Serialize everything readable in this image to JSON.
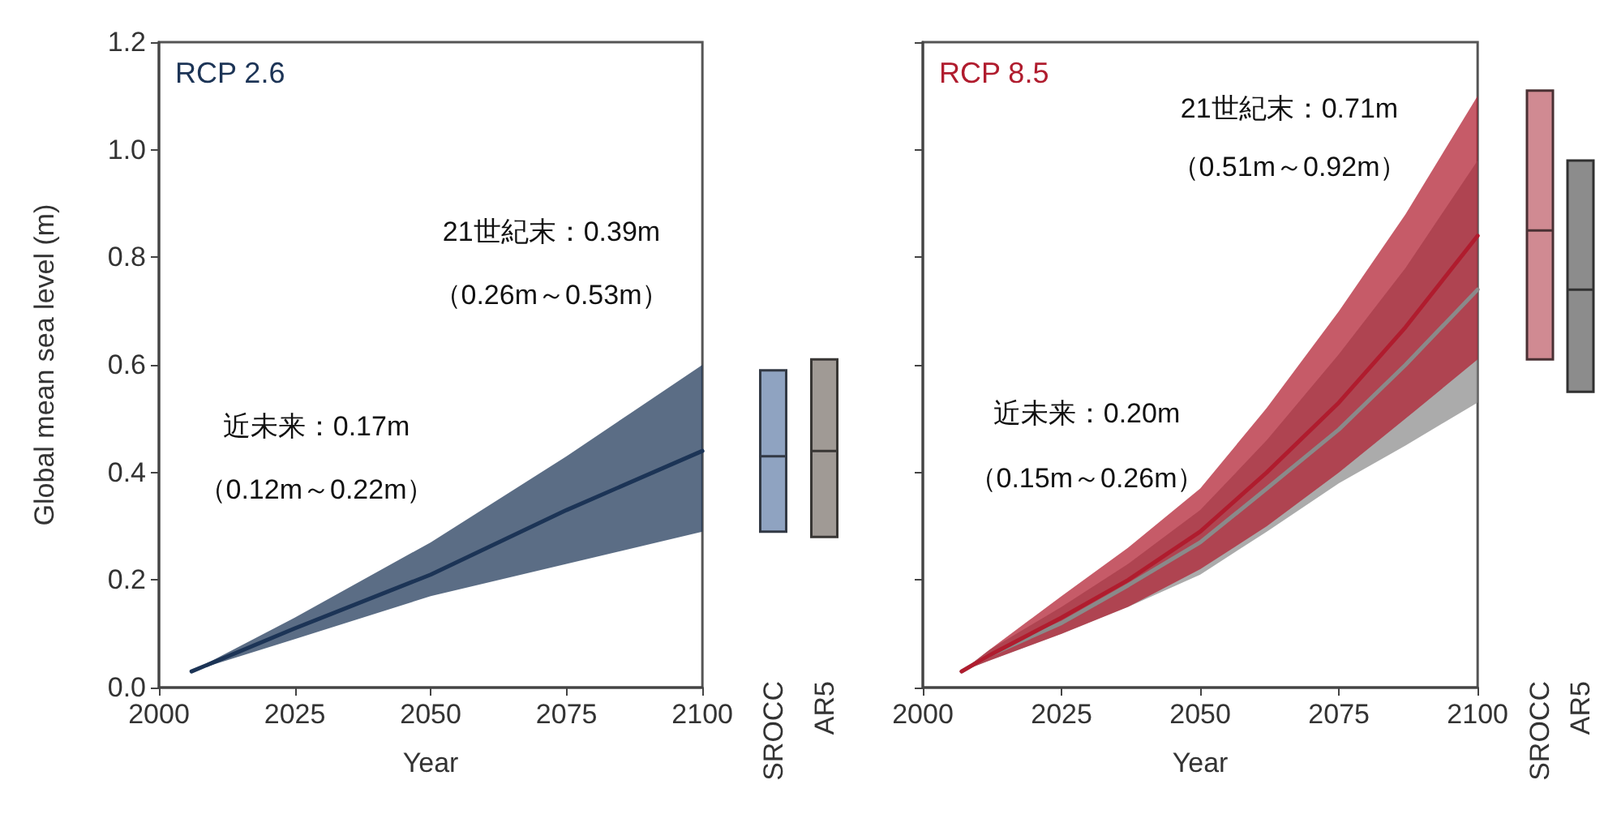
{
  "chart_data": [
    {
      "type": "line",
      "title": "RCP 2.6",
      "xlabel": "Year",
      "ylabel": "Global mean sea level (m)",
      "x": [
        2006,
        2025,
        2050,
        2075,
        2100
      ],
      "series": [
        {
          "color": "#1c3456",
          "values": [
            0.03,
            0.11,
            0.21,
            0.33,
            0.44
          ],
          "lower": [
            0.03,
            0.09,
            0.17,
            0.23,
            0.29
          ],
          "upper": [
            0.03,
            0.13,
            0.27,
            0.43,
            0.6
          ]
        }
      ],
      "xlim": [
        2000,
        2100
      ],
      "xticks": [
        2000,
        2025,
        2050,
        2075,
        2100
      ],
      "ylim": [
        0,
        1.2
      ],
      "yticks": [
        {
          "value": 0,
          "label": "0.0"
        },
        0.2,
        0.4,
        0.6,
        0.8,
        {
          "value": 1,
          "label": "1.0"
        },
        1.2
      ],
      "annotations": [
        "21世紀末：0.39m",
        "（0.26m～0.53m）",
        "近未来：0.17m",
        "（0.12m～0.22m）"
      ]
    },
    {
      "type": "box",
      "categories": [
        "SROCC",
        "AR5"
      ],
      "colors": [
        "#8fa3c1",
        "#a09a95"
      ],
      "boxes": [
        {
          "low": 0.29,
          "q1": 0.29,
          "median": 0.43,
          "q3": 0.59,
          "high": 0.59
        },
        {
          "low": 0.28,
          "q1": 0.28,
          "median": 0.44,
          "q3": 0.61,
          "high": 0.61
        }
      ],
      "ylim": [
        0,
        1.2
      ],
      "tick_labels": "x"
    },
    {
      "type": "line",
      "title": "RCP 8.5",
      "xlabel": "Year",
      "x": [
        2007,
        2012,
        2025,
        2037,
        2050,
        2062,
        2075,
        2087,
        2100
      ],
      "series": [
        {
          "color": "#8a8a8a",
          "values": [
            0.03,
            0.06,
            0.12,
            0.19,
            0.27,
            0.37,
            0.48,
            0.6,
            0.74
          ],
          "lower": [
            0.03,
            0.05,
            0.1,
            0.15,
            0.21,
            0.29,
            0.38,
            0.45,
            0.53
          ],
          "upper": [
            0.03,
            0.07,
            0.15,
            0.23,
            0.33,
            0.46,
            0.62,
            0.78,
            0.98
          ]
        },
        {
          "color": "#b01c2e",
          "values": [
            0.03,
            0.06,
            0.13,
            0.2,
            0.29,
            0.4,
            0.53,
            0.67,
            0.84
          ],
          "lower": [
            0.03,
            0.05,
            0.1,
            0.15,
            0.22,
            0.3,
            0.4,
            0.5,
            0.61
          ],
          "upper": [
            0.03,
            0.07,
            0.17,
            0.26,
            0.37,
            0.52,
            0.7,
            0.88,
            1.1
          ]
        }
      ],
      "xlim": [
        2000,
        2100
      ],
      "xticks": [
        2000,
        2025,
        2050,
        2075,
        2100
      ],
      "ylim": [
        0,
        1.2
      ],
      "yticks": [
        {
          "value": 0,
          "label": null
        },
        {
          "value": 0.2,
          "label": null
        },
        {
          "value": 0.4,
          "label": null
        },
        {
          "value": 0.6,
          "label": null
        },
        {
          "value": 0.8,
          "label": null
        },
        {
          "value": 1,
          "label": null
        },
        {
          "value": 1.2,
          "label": null
        }
      ],
      "tick_labels": "x",
      "annotations": [
        "21世紀末：0.71m",
        "（0.51m～0.92m）",
        "近未来：0.20m",
        "（0.15m～0.26m）"
      ]
    },
    {
      "type": "box",
      "categories": [
        "SROCC",
        "AR5"
      ],
      "colors": [
        "#d08a92",
        "#8c8c8c"
      ],
      "boxes": [
        {
          "low": 0.61,
          "q1": 0.61,
          "median": 0.85,
          "q3": 1.11,
          "high": 1.11
        },
        {
          "low": 0.55,
          "q1": 0.55,
          "median": 0.74,
          "q3": 0.98,
          "high": 0.98
        }
      ],
      "ylim": [
        0,
        1.2
      ],
      "tick_labels": "x"
    }
  ]
}
